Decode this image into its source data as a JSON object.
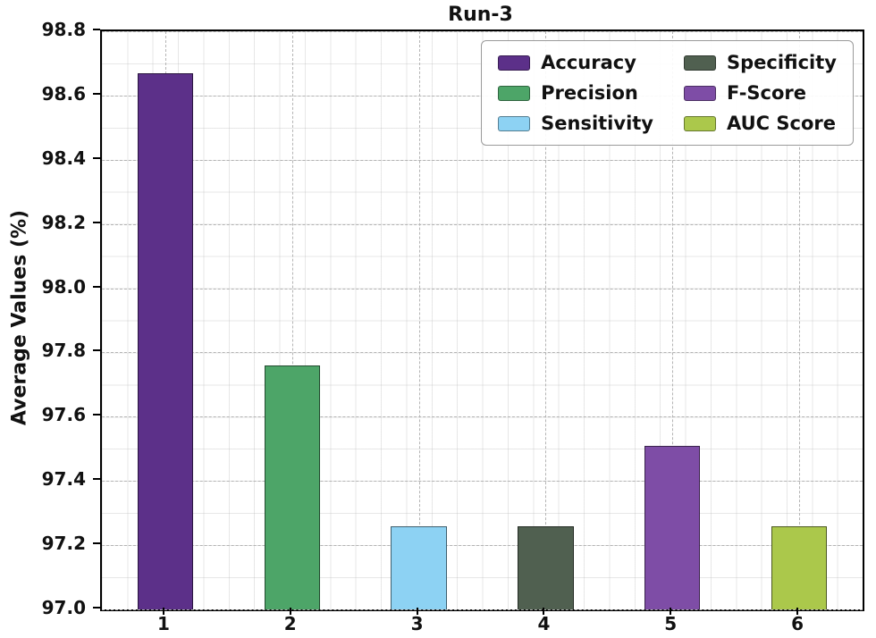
{
  "chart_data": {
    "type": "bar",
    "title": "Run-3",
    "ylabel": "Average Values (%)",
    "xlabel": "",
    "categories": [
      "1",
      "2",
      "3",
      "4",
      "5",
      "6"
    ],
    "series": [
      {
        "name": "Accuracy",
        "color": "#5c3089",
        "value": 98.67
      },
      {
        "name": "Precision",
        "color": "#4da568",
        "value": 97.76
      },
      {
        "name": "Sensitivity",
        "color": "#8dd2f3",
        "value": 97.26
      },
      {
        "name": "Specificity",
        "color": "#506050",
        "value": 97.26
      },
      {
        "name": "F-Score",
        "color": "#7e4da6",
        "value": 97.51
      },
      {
        "name": "AUC Score",
        "color": "#abc84b",
        "value": 97.26
      }
    ],
    "ylim": [
      97.0,
      98.8
    ],
    "yticks": [
      97.0,
      97.2,
      97.4,
      97.6,
      97.8,
      98.0,
      98.2,
      98.4,
      98.6,
      98.8
    ],
    "ytick_format_decimals": 1,
    "grid": true,
    "legend_position": "upper-right",
    "legend_columns": 2,
    "bar_width_fraction": 0.44
  }
}
